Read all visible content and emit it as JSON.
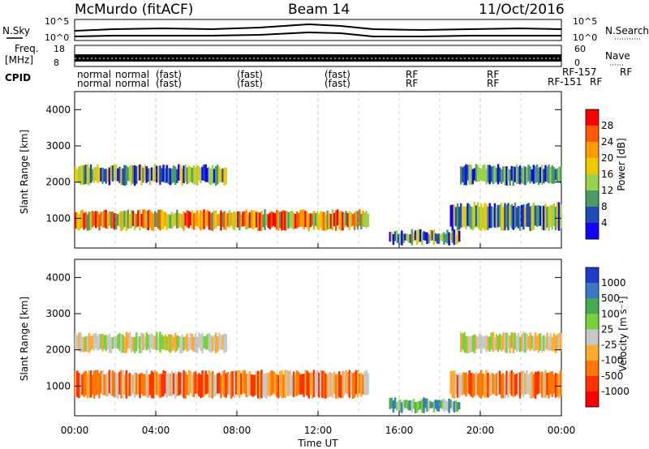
{
  "header": {
    "station": "McMurdo (fitACF)",
    "beam": "Beam 14",
    "date": "11/Oct/2016"
  },
  "summary_panels": {
    "nsky_label": "N.Sky",
    "nsky_ticks": [
      "10^5",
      "10^0"
    ],
    "nsearch_label": "N.Search",
    "nsearch_ticks": [
      "10^5",
      "10^0"
    ],
    "freq_label_1": "Freq.",
    "freq_label_2": "[MHz]",
    "freq_ticks": [
      "18",
      "8"
    ],
    "nave_label": "Nave",
    "nave_ticks": [
      "60",
      "0"
    ],
    "cpid_label": "CPID",
    "cpid_row1": [
      "normal",
      "normal",
      "(fast)",
      "(fast)",
      "(fast)",
      "RF",
      "RF",
      "RF-157",
      "RF"
    ],
    "cpid_row2": [
      "normal",
      "normal",
      "(fast)",
      "(fast)",
      "(fast)",
      "RF",
      "RF",
      "RF-151",
      "RF"
    ]
  },
  "chart_data": [
    {
      "type": "heatmap",
      "panel": "power",
      "ylabel": "Slant Range [km]",
      "yticks": [
        1000,
        2000,
        3000,
        4000
      ],
      "ylim": [
        180,
        4500
      ],
      "xlim_hours": [
        0,
        24
      ],
      "colorbar_label": "Power [dB]",
      "colorbar_ticks": [
        "28",
        "24",
        "20",
        "16",
        "12",
        "8",
        "4"
      ],
      "colorbar_colors": [
        "#ff0000",
        "#ff5a00",
        "#ff9b00",
        "#f0c800",
        "#9bd24b",
        "#4b9b69",
        "#1e4bb4",
        "#1400ff"
      ],
      "bands": [
        {
          "t_start": 0.0,
          "t_end": 14.5,
          "r_start": 650,
          "r_end": 1250,
          "level": "high"
        },
        {
          "t_start": 0.0,
          "t_end": 7.5,
          "r_start": 1900,
          "r_end": 2500,
          "level": "mid"
        },
        {
          "t_start": 15.5,
          "t_end": 19.0,
          "r_start": 250,
          "r_end": 700,
          "level": "mid"
        },
        {
          "t_start": 18.5,
          "t_end": 24.0,
          "r_start": 650,
          "r_end": 1450,
          "level": "mid"
        },
        {
          "t_start": 19.0,
          "t_end": 24.0,
          "r_start": 1900,
          "r_end": 2500,
          "level": "low"
        }
      ]
    },
    {
      "type": "heatmap",
      "panel": "velocity",
      "ylabel": "Slant Range [km]",
      "yticks": [
        1000,
        2000,
        3000,
        4000
      ],
      "ylim": [
        180,
        4500
      ],
      "xlim_hours": [
        0,
        24
      ],
      "xlabel": "Time UT",
      "xticks": [
        "00:00",
        "04:00",
        "08:00",
        "12:00",
        "16:00",
        "20:00",
        "00:00"
      ],
      "colorbar_label": "Velocity [m s⁻¹]",
      "colorbar_ticks": [
        "1000",
        "500",
        "100",
        "25",
        "-25",
        "-100",
        "-500",
        "-1000"
      ],
      "colorbar_colors": [
        "#1e3cc8",
        "#3c78c8",
        "#46aa50",
        "#78d23c",
        "#c8c8c8",
        "#ffaa32",
        "#ff7800",
        "#ff3200",
        "#ff0000"
      ],
      "bands": [
        {
          "t_start": 0.0,
          "t_end": 14.5,
          "r_start": 650,
          "r_end": 1450,
          "level": "toward"
        },
        {
          "t_start": 0.0,
          "t_end": 7.5,
          "r_start": 1900,
          "r_end": 2500,
          "level": "zero"
        },
        {
          "t_start": 15.5,
          "t_end": 19.0,
          "r_start": 250,
          "r_end": 700,
          "level": "away"
        },
        {
          "t_start": 18.5,
          "t_end": 24.0,
          "r_start": 650,
          "r_end": 1450,
          "level": "toward"
        },
        {
          "t_start": 19.0,
          "t_end": 24.0,
          "r_start": 1900,
          "r_end": 2500,
          "level": "zero"
        }
      ]
    }
  ]
}
